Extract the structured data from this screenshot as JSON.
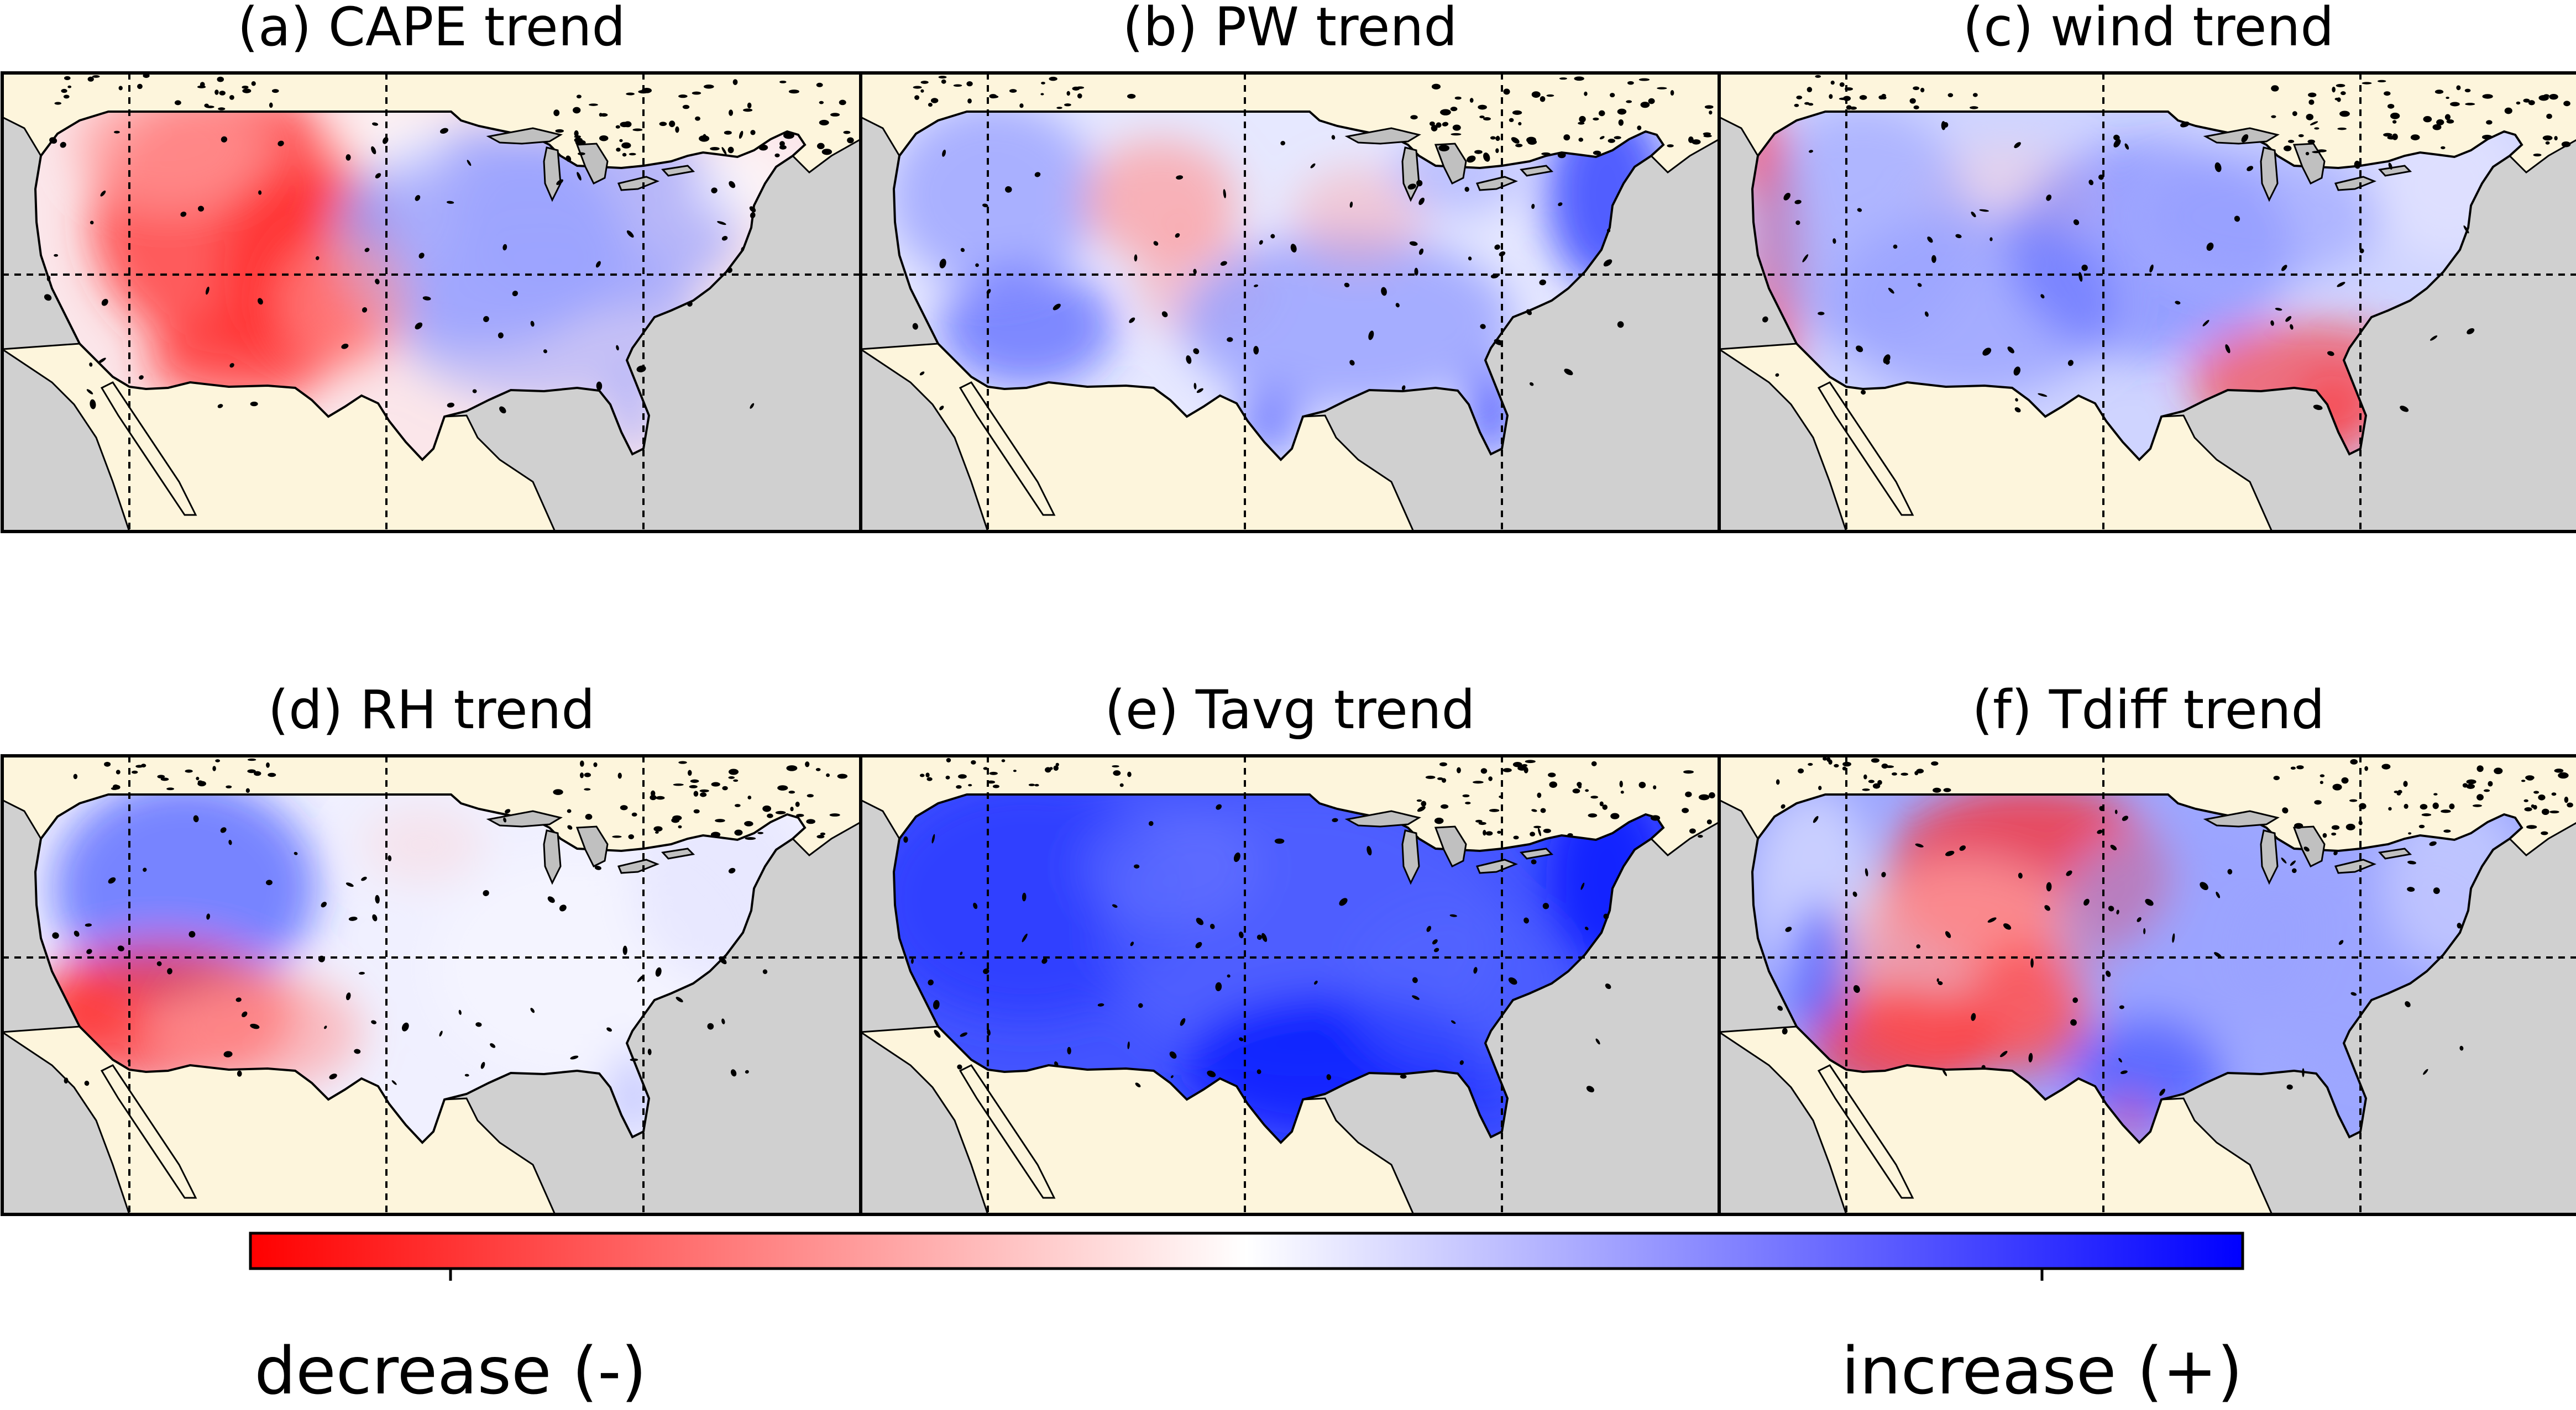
{
  "figure": {
    "panels": [
      {
        "title": "(a) CAPE trend",
        "pattern": "cape"
      },
      {
        "title": "(b) PW trend",
        "pattern": "pw"
      },
      {
        "title": "(c) wind trend",
        "pattern": "wind"
      },
      {
        "title": "(d) RH trend",
        "pattern": "rh"
      },
      {
        "title": "(e) Tavg trend",
        "pattern": "tavg"
      },
      {
        "title": "(f) Tdiff trend",
        "pattern": "tdiff"
      }
    ],
    "colorbar": {
      "left_label": "decrease (-)",
      "right_label": "increase (+)",
      "colors": [
        "#ff0000",
        "#ffffff",
        "#0000ff"
      ]
    },
    "map_colors": {
      "ocean": "#d0d0d0",
      "land": "#fdf5dc",
      "lakes": "#c0c0c0",
      "coastline": "#000000",
      "graticule": "#000000"
    }
  }
}
